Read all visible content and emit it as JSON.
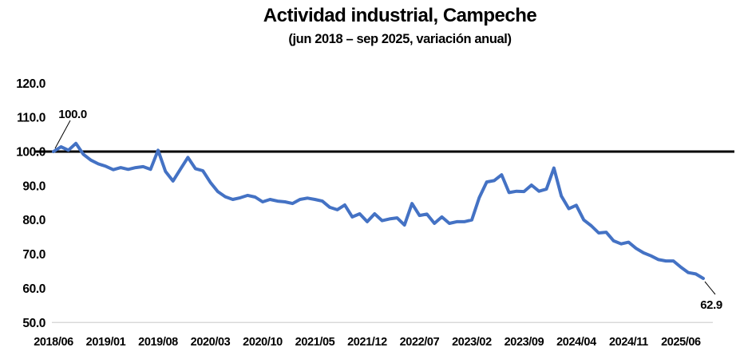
{
  "page": {
    "background": "#ffffff"
  },
  "chart_data": {
    "type": "line",
    "title": "Actividad industrial, Campeche",
    "subtitle": "(jun 2018 – sep 2025, variación anual)",
    "x": [
      "2018/06",
      "2018/07",
      "2018/08",
      "2018/09",
      "2018/10",
      "2018/11",
      "2018/12",
      "2019/01",
      "2019/02",
      "2019/03",
      "2019/04",
      "2019/05",
      "2019/06",
      "2019/07",
      "2019/08",
      "2019/09",
      "2019/10",
      "2019/11",
      "2019/12",
      "2020/01",
      "2020/02",
      "2020/03",
      "2020/04",
      "2020/05",
      "2020/06",
      "2020/07",
      "2020/08",
      "2020/09",
      "2020/10",
      "2020/11",
      "2020/12",
      "2021/01",
      "2021/02",
      "2021/03",
      "2021/04",
      "2021/05",
      "2021/06",
      "2021/07",
      "2021/08",
      "2021/09",
      "2021/10",
      "2021/11",
      "2021/12",
      "2022/01",
      "2022/02",
      "2022/03",
      "2022/04",
      "2022/05",
      "2022/06",
      "2022/07",
      "2022/08",
      "2022/09",
      "2022/10",
      "2022/11",
      "2022/12",
      "2023/01",
      "2023/02",
      "2023/03",
      "2023/04",
      "2023/05",
      "2023/06",
      "2023/07",
      "2023/08",
      "2023/09",
      "2023/10",
      "2023/11",
      "2023/12",
      "2024/01",
      "2024/02",
      "2024/03",
      "2024/04",
      "2024/05",
      "2024/06",
      "2024/07",
      "2024/08",
      "2024/09",
      "2024/10",
      "2024/11",
      "2024/12",
      "2025/01",
      "2025/02",
      "2025/03",
      "2025/04",
      "2025/05",
      "2025/06",
      "2025/07",
      "2025/08",
      "2025/09"
    ],
    "series": [
      {
        "name": "Actividad industrial (índice, variación anual)",
        "color": "#4472C4",
        "values": [
          100.0,
          101.4,
          100.4,
          102.4,
          99.2,
          97.5,
          96.4,
          95.7,
          94.7,
          95.3,
          94.8,
          95.3,
          95.6,
          94.8,
          100.4,
          94.2,
          91.4,
          94.9,
          98.3,
          95.0,
          94.4,
          91.0,
          88.3,
          86.8,
          86.0,
          86.5,
          87.2,
          86.7,
          85.3,
          86.0,
          85.5,
          85.3,
          84.8,
          86.0,
          86.4,
          86.0,
          85.5,
          83.7,
          83.0,
          84.4,
          80.9,
          81.8,
          79.5,
          81.8,
          79.8,
          80.3,
          80.6,
          78.5,
          84.8,
          81.3,
          81.7,
          79.0,
          80.9,
          79.0,
          79.5,
          79.5,
          80.0,
          86.5,
          91.1,
          91.5,
          93.2,
          88.0,
          88.4,
          88.3,
          90.2,
          88.4,
          89.0,
          95.2,
          87.0,
          83.3,
          84.3,
          80.0,
          78.3,
          76.2,
          76.4,
          73.9,
          73.0,
          73.5,
          71.7,
          70.4,
          69.5,
          68.4,
          68.0,
          68.0,
          66.2,
          64.6,
          64.2,
          62.9
        ]
      }
    ],
    "reference_line": {
      "value": 100,
      "color": "#000000"
    },
    "ylim": [
      50,
      120
    ],
    "ytick_labels": [
      "120.0",
      "110.0",
      "100.0",
      "90.0",
      "80.0",
      "70.0",
      "60.0",
      "50.0"
    ],
    "xtick_every": 7,
    "xtick_labels": [
      "2018/06",
      "2019/01",
      "2019/08",
      "2020/03",
      "2020/10",
      "2021/05",
      "2021/12",
      "2022/07",
      "2023/02",
      "2023/09",
      "2024/04",
      "2024/11",
      "2025/06"
    ],
    "annotations": [
      {
        "text": "100.0",
        "point_index": 0,
        "position": "above"
      },
      {
        "text": "62.9",
        "point_index": 87,
        "position": "below"
      }
    ],
    "grid": "off",
    "legend": "none",
    "axis_line_color": "#D9D9D9",
    "text_color": "#000000"
  }
}
